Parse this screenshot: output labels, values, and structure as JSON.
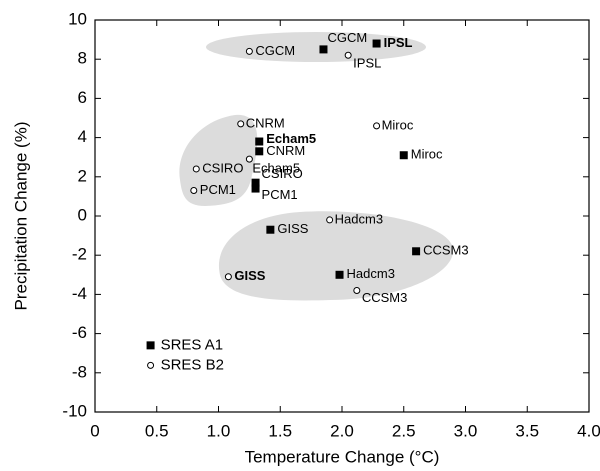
{
  "chart_data": {
    "type": "scatter",
    "xlabel": "Temperature Change (°C)",
    "ylabel": "Precipitation Change (%)",
    "xlim": [
      0,
      4
    ],
    "ylim": [
      -10,
      10
    ],
    "xticks": [
      0,
      0.5,
      {
        "value": 1,
        "label": "1.0"
      },
      1.5,
      {
        "value": 2,
        "label": "2.0"
      },
      2.5,
      {
        "value": 3,
        "label": "3.0"
      },
      3.5,
      {
        "value": 4,
        "label": "4.0"
      }
    ],
    "yticks": [
      -10,
      -8,
      -6,
      -4,
      -2,
      0,
      2,
      4,
      6,
      8,
      10
    ],
    "series": [
      {
        "name": "SRES A1",
        "color": "#000000",
        "labels": [
          "CGCM",
          "IPSL",
          "Echam5",
          "CNRM",
          "CSIRO",
          "PCM1",
          "GISS",
          "Hadcm3",
          "CCSM3",
          "Miroc"
        ],
        "x": [
          1.85,
          2.28,
          1.33,
          1.33,
          1.3,
          1.3,
          1.42,
          1.98,
          2.6,
          2.5
        ],
        "values": [
          8.5,
          8.8,
          3.8,
          3.3,
          1.7,
          1.4,
          -0.7,
          -3.0,
          -1.8,
          3.1
        ]
      },
      {
        "name": "SRES B2",
        "color": "#ffffff",
        "labels": [
          "CGCM",
          "IPSL",
          "CNRM",
          "Echam5",
          "CSIRO",
          "PCM1",
          "Miroc",
          "Hadcm3",
          "GISS",
          "CCSM3"
        ],
        "x": [
          1.25,
          2.05,
          1.18,
          1.25,
          0.82,
          0.8,
          2.28,
          1.9,
          1.08,
          2.12
        ],
        "values": [
          8.4,
          8.2,
          4.7,
          2.9,
          2.4,
          1.3,
          4.6,
          -0.2,
          -3.1,
          -3.8
        ]
      }
    ]
  }
}
